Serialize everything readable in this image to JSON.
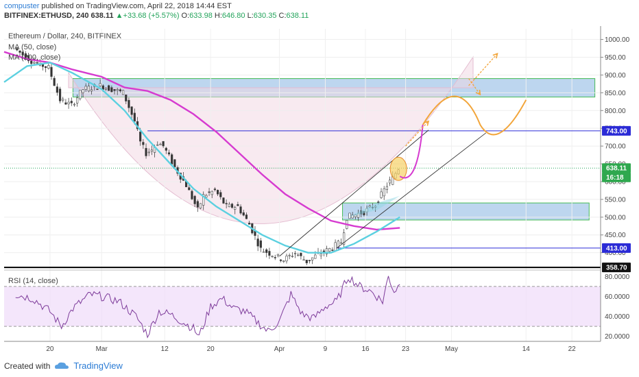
{
  "header": {
    "author": "compuster",
    "published": "published on TradingView.com, April 22, 2018 14:44 EST",
    "symbol": "BITFINEX:ETHUSD, 240",
    "last": "638.11",
    "change": "+33.68 (+5.57%)",
    "o_label": "O:",
    "o": "633.98",
    "h_label": "H:",
    "h": "646.80",
    "l_label": "L:",
    "l": "630.35",
    "c_label": "C:",
    "c": "638.11"
  },
  "footer": {
    "created_with": "Created with",
    "brand": "TradingView"
  },
  "colors": {
    "ma50": "#5bd0e0",
    "ma200": "#d63bd0",
    "candle_up": "#555555",
    "candle_down": "#333333",
    "zone_fill": "#a7c8ea",
    "zone_border": "#44bb55",
    "level": "#2b2bd6",
    "support": "#000000",
    "arrow": "#f2a53a",
    "rsi": "#7d3b9a"
  },
  "chart_data": [
    {
      "type": "candlestick",
      "title": "Ethereum / Dollar, 240, BITFINEX",
      "legend": [
        "MA (50, close)",
        "MA (200, close)"
      ],
      "x_tick_labels": [
        "20",
        "Mar",
        "12",
        "20",
        "Apr",
        "9",
        "16",
        "23",
        "May",
        "14",
        "22"
      ],
      "y_tick_labels": [
        "400.00",
        "450.00",
        "500.00",
        "550.00",
        "600.00",
        "650.00",
        "700.00",
        "750.00",
        "800.00",
        "850.00",
        "900.00",
        "950.00",
        "1000.00"
      ],
      "ylim": [
        355,
        1030
      ],
      "price_tags": [
        {
          "label": "638.11",
          "value": 638.11
        },
        {
          "label": "16:18",
          "value": 612
        },
        {
          "label": "743.00",
          "value": 743
        },
        {
          "label": "413.00",
          "value": 413
        },
        {
          "label": "358.70",
          "value": 358.7
        }
      ],
      "price_path": [
        [
          "Feb 14",
          975
        ],
        [
          "Feb 17",
          940
        ],
        [
          "Feb 20",
          920
        ],
        [
          "Feb 22",
          830
        ],
        [
          "Feb 24",
          815
        ],
        [
          "Feb 26",
          860
        ],
        [
          "Mar 1",
          870
        ],
        [
          "Mar 3",
          860
        ],
        [
          "Mar 5",
          850
        ],
        [
          "Mar 7",
          770
        ],
        [
          "Mar 8",
          710
        ],
        [
          "Mar 9",
          680
        ],
        [
          "Mar 10",
          690
        ],
        [
          "Mar 11",
          710
        ],
        [
          "Mar 12",
          700
        ],
        [
          "Mar 14",
          640
        ],
        [
          "Mar 16",
          590
        ],
        [
          "Mar 18",
          520
        ],
        [
          "Mar 19",
          560
        ],
        [
          "Mar 21",
          575
        ],
        [
          "Mar 23",
          530
        ],
        [
          "Mar 25",
          530
        ],
        [
          "Mar 27",
          480
        ],
        [
          "Mar 29",
          410
        ],
        [
          "Mar 31",
          395
        ],
        [
          "Apr 2",
          380
        ],
        [
          "Apr 4",
          400
        ],
        [
          "Apr 6",
          375
        ],
        [
          "Apr 8",
          395
        ],
        [
          "Apr 10",
          410
        ],
        [
          "Apr 12",
          430
        ],
        [
          "Apr 13",
          500
        ],
        [
          "Apr 14",
          505
        ],
        [
          "Apr 16",
          515
        ],
        [
          "Apr 18",
          535
        ],
        [
          "Apr 20",
          590
        ],
        [
          "Apr 21",
          610
        ],
        [
          "Apr 22",
          638
        ]
      ],
      "ma50": [
        [
          "Feb 12",
          880
        ],
        [
          "Feb 16",
          925
        ],
        [
          "Feb 20",
          935
        ],
        [
          "Feb 24",
          905
        ],
        [
          "Mar 1",
          860
        ],
        [
          "Mar 5",
          800
        ],
        [
          "Mar 9",
          720
        ],
        [
          "Mar 13",
          650
        ],
        [
          "Mar 17",
          580
        ],
        [
          "Mar 21",
          530
        ],
        [
          "Mar 25",
          490
        ],
        [
          "Mar 29",
          450
        ],
        [
          "Apr 2",
          420
        ],
        [
          "Apr 6",
          400
        ],
        [
          "Apr 10",
          400
        ],
        [
          "Apr 14",
          425
        ],
        [
          "Apr 18",
          460
        ],
        [
          "Apr 22",
          500
        ]
      ],
      "ma200": [
        [
          "Feb 12",
          965
        ],
        [
          "Feb 16",
          945
        ],
        [
          "Feb 20",
          935
        ],
        [
          "Feb 24",
          915
        ],
        [
          "Mar 1",
          895
        ],
        [
          "Mar 5",
          865
        ],
        [
          "Mar 9",
          855
        ],
        [
          "Mar 13",
          830
        ],
        [
          "Mar 17",
          790
        ],
        [
          "Mar 21",
          740
        ],
        [
          "Mar 25",
          680
        ],
        [
          "Mar 29",
          620
        ],
        [
          "Apr 2",
          565
        ],
        [
          "Apr 6",
          525
        ],
        [
          "Apr 10",
          490
        ],
        [
          "Apr 14",
          475
        ],
        [
          "Apr 18",
          465
        ],
        [
          "Apr 22",
          470
        ]
      ],
      "zones": [
        {
          "from": "Feb 24",
          "to": "May 26",
          "low": 838,
          "high": 890
        },
        {
          "from": "Apr 12",
          "to": "May 25",
          "low": 492,
          "high": 540
        }
      ],
      "levels": [
        {
          "value": 743,
          "from": "Mar 9"
        },
        {
          "value": 413,
          "from": "Apr 11"
        },
        {
          "value": 358.7,
          "from": "Feb 12"
        }
      ]
    },
    {
      "type": "line",
      "title": "RSI (14, close)",
      "y_tick_labels": [
        "20.0000",
        "40.0000",
        "60.0000",
        "80.0000"
      ],
      "ylim": [
        15,
        85
      ],
      "bands": [
        30,
        70
      ],
      "values": [
        [
          "Feb 14",
          62
        ],
        [
          "Feb 17",
          58
        ],
        [
          "Feb 20",
          45
        ],
        [
          "Feb 22",
          30
        ],
        [
          "Feb 24",
          48
        ],
        [
          "Feb 27",
          62
        ],
        [
          "Mar 1",
          60
        ],
        [
          "Mar 4",
          55
        ],
        [
          "Mar 7",
          40
        ],
        [
          "Mar 9",
          22
        ],
        [
          "Mar 11",
          45
        ],
        [
          "Mar 13",
          42
        ],
        [
          "Mar 15",
          35
        ],
        [
          "Mar 17",
          28
        ],
        [
          "Mar 18",
          20
        ],
        [
          "Mar 20",
          50
        ],
        [
          "Mar 22",
          58
        ],
        [
          "Mar 24",
          48
        ],
        [
          "Mar 26",
          45
        ],
        [
          "Mar 28",
          35
        ],
        [
          "Mar 30",
          25
        ],
        [
          "Apr 1",
          35
        ],
        [
          "Apr 3",
          62
        ],
        [
          "Apr 5",
          42
        ],
        [
          "Apr 7",
          38
        ],
        [
          "Apr 9",
          50
        ],
        [
          "Apr 11",
          55
        ],
        [
          "Apr 13",
          80
        ],
        [
          "Apr 15",
          70
        ],
        [
          "Apr 17",
          65
        ],
        [
          "Apr 19",
          55
        ],
        [
          "Apr 20",
          80
        ],
        [
          "Apr 21",
          65
        ],
        [
          "Apr 22",
          72
        ]
      ]
    }
  ]
}
